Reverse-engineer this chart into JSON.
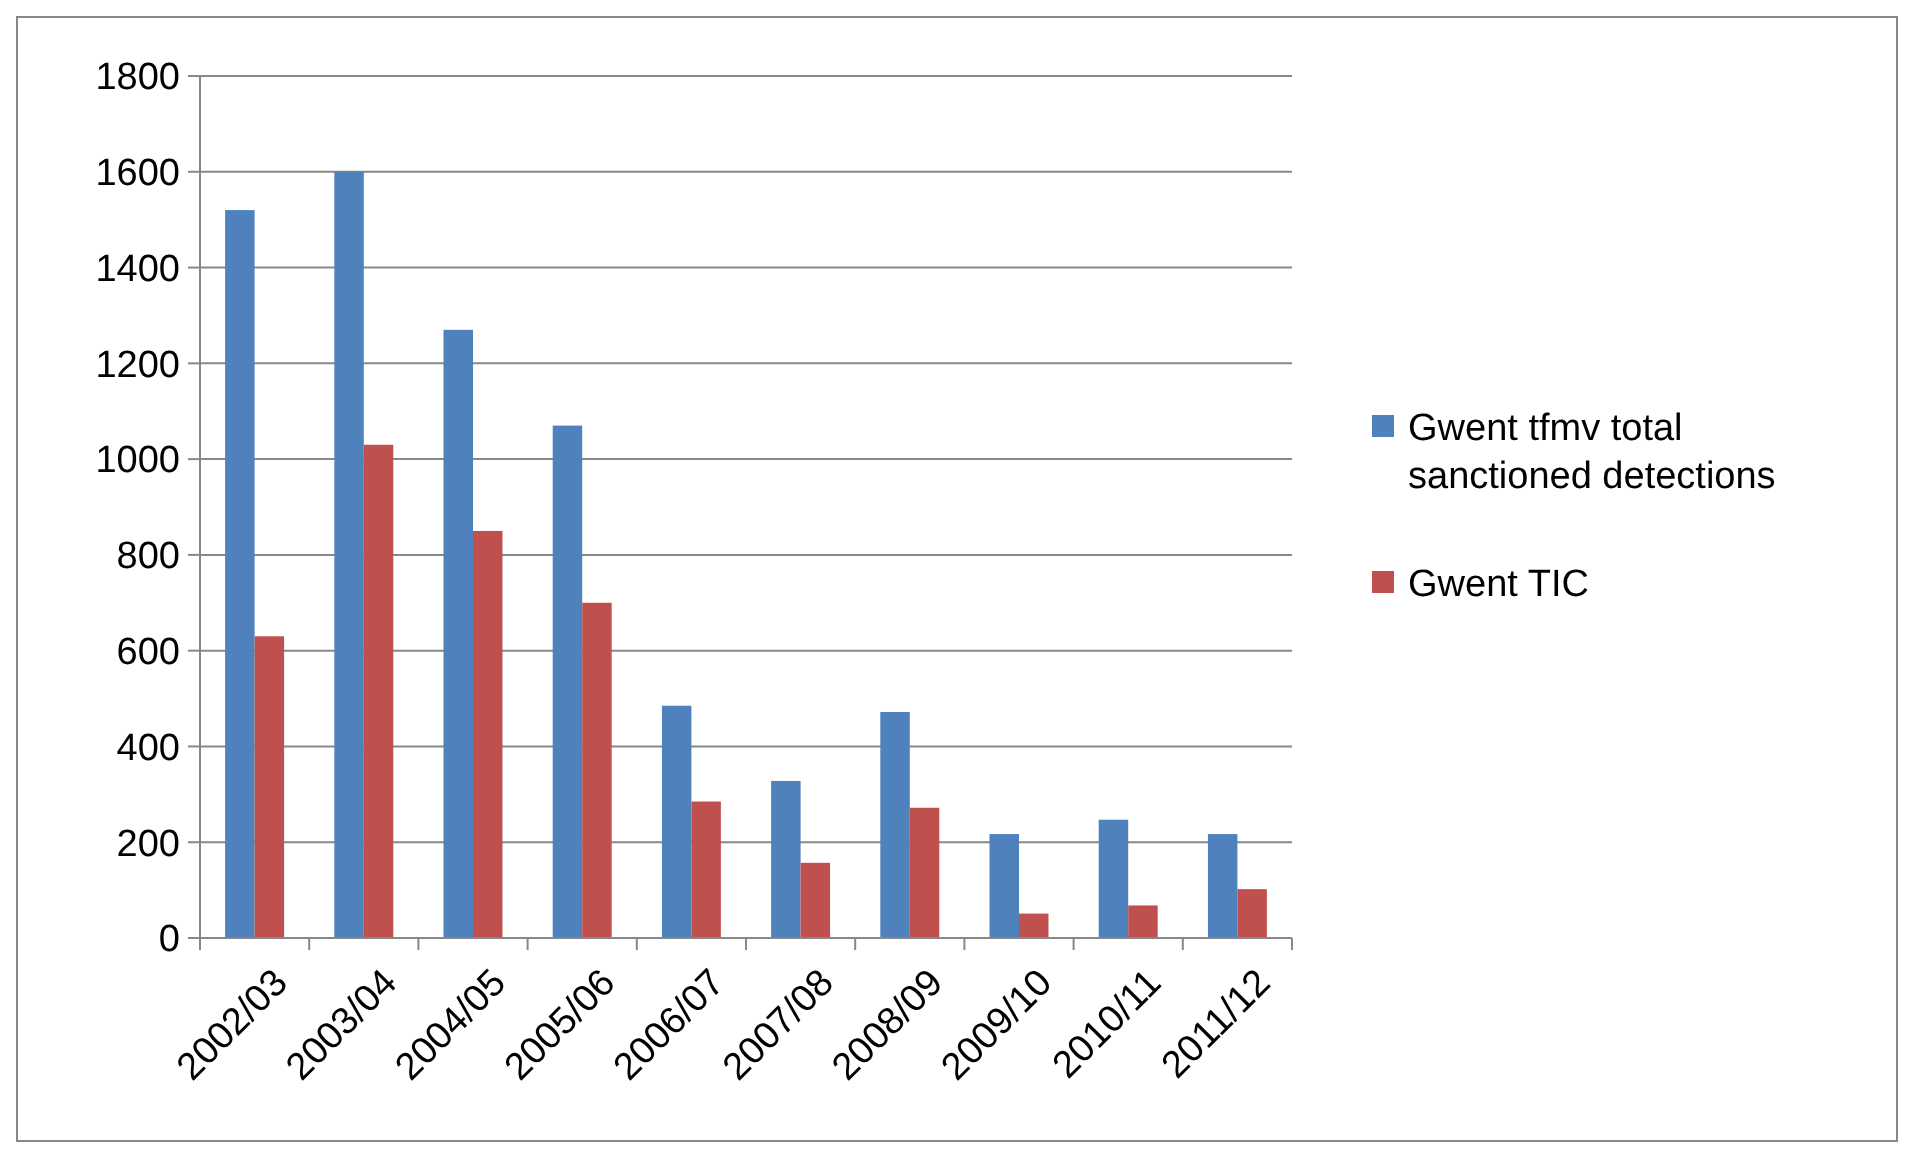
{
  "chart_data": {
    "type": "bar",
    "categories": [
      "2002/03",
      "2003/04",
      "2004/05",
      "2005/06",
      "2006/07",
      "2007/08",
      "2008/09",
      "2009/10",
      "2010/11",
      "2011/12"
    ],
    "series": [
      {
        "name": "Gwent tfmv total sanctioned detections",
        "color": "#4f81bd",
        "values": [
          1520,
          1600,
          1270,
          1070,
          485,
          328,
          472,
          217,
          247,
          217
        ]
      },
      {
        "name": "Gwent TIC",
        "color": "#c0504d",
        "values": [
          630,
          1030,
          850,
          700,
          285,
          157,
          272,
          51,
          68,
          102
        ]
      }
    ],
    "ylim": [
      0,
      1800
    ],
    "yticks": [
      0,
      200,
      400,
      600,
      800,
      1000,
      1200,
      1400,
      1600,
      1800
    ],
    "grid": "y",
    "legend": "right"
  }
}
